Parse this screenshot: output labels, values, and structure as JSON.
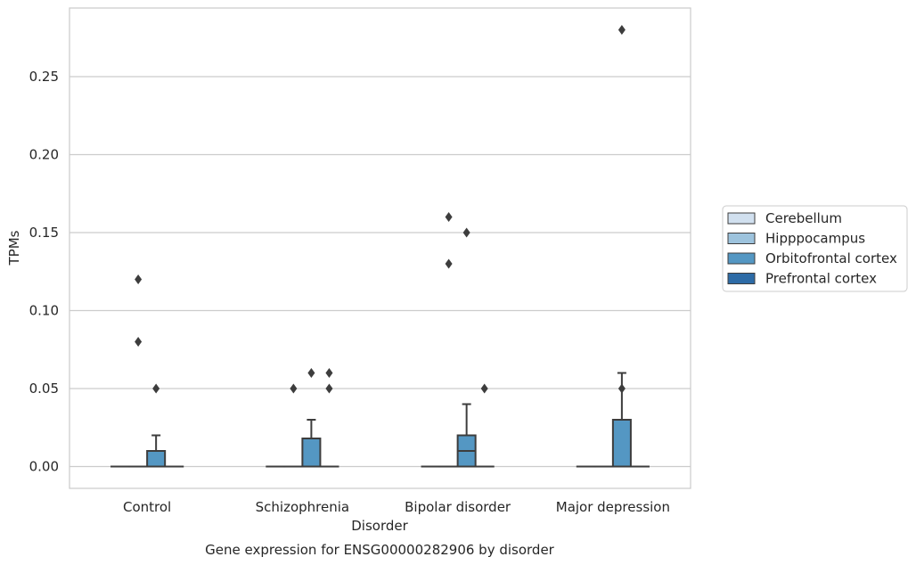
{
  "caption": "Gene expression for ENSG00000282906 by disorder",
  "chart_data": {
    "type": "boxplot",
    "xlabel": "Disorder",
    "ylabel": "TPMs",
    "ylim": [
      -0.014,
      0.294
    ],
    "yticks": [
      0.0,
      0.05,
      0.1,
      0.15,
      0.2,
      0.25
    ],
    "ytick_labels": [
      "0.00",
      "0.05",
      "0.10",
      "0.15",
      "0.20",
      "0.25"
    ],
    "grid": "horizontal",
    "legend_position": "center-right",
    "categories": [
      "Control",
      "Schizophrenia",
      "Bipolar disorder",
      "Major depression"
    ],
    "series": [
      {
        "name": "Cerebellum",
        "color": "#d1e0ef",
        "boxes": [
          {
            "q1": 0,
            "median": 0,
            "q3": 0,
            "whisker_low": 0,
            "whisker_high": 0,
            "outliers": []
          },
          {
            "q1": 0,
            "median": 0,
            "q3": 0,
            "whisker_low": 0,
            "whisker_high": 0,
            "outliers": []
          },
          {
            "q1": 0,
            "median": 0,
            "q3": 0,
            "whisker_low": 0,
            "whisker_high": 0,
            "outliers": []
          },
          {
            "q1": 0,
            "median": 0,
            "q3": 0,
            "whisker_low": 0,
            "whisker_high": 0,
            "outliers": []
          }
        ]
      },
      {
        "name": "Hipppocampus",
        "color": "#9dc3dd",
        "boxes": [
          {
            "q1": 0,
            "median": 0,
            "q3": 0,
            "whisker_low": 0,
            "whisker_high": 0,
            "outliers": [
              0.12,
              0.08
            ]
          },
          {
            "q1": 0,
            "median": 0,
            "q3": 0,
            "whisker_low": 0,
            "whisker_high": 0,
            "outliers": [
              0.05
            ]
          },
          {
            "q1": 0,
            "median": 0,
            "q3": 0,
            "whisker_low": 0,
            "whisker_high": 0,
            "outliers": [
              0.16,
              0.13
            ]
          },
          {
            "q1": 0,
            "median": 0,
            "q3": 0,
            "whisker_low": 0,
            "whisker_high": 0,
            "outliers": []
          }
        ]
      },
      {
        "name": "Orbitofrontal cortex",
        "color": "#5497c3",
        "boxes": [
          {
            "q1": 0,
            "median": 0,
            "q3": 0.01,
            "whisker_low": 0,
            "whisker_high": 0.02,
            "outliers": [
              0.05
            ]
          },
          {
            "q1": 0,
            "median": 0,
            "q3": 0.018,
            "whisker_low": 0,
            "whisker_high": 0.03,
            "outliers": [
              0.06
            ]
          },
          {
            "q1": 0,
            "median": 0.01,
            "q3": 0.02,
            "whisker_low": 0,
            "whisker_high": 0.04,
            "outliers": [
              0.15
            ]
          },
          {
            "q1": 0,
            "median": 0,
            "q3": 0.03,
            "whisker_low": 0,
            "whisker_high": 0.06,
            "outliers": [
              0.28,
              0.05
            ]
          }
        ]
      },
      {
        "name": "Prefrontal cortex",
        "color": "#2d6ba6",
        "boxes": [
          {
            "q1": 0,
            "median": 0,
            "q3": 0,
            "whisker_low": 0,
            "whisker_high": 0,
            "outliers": []
          },
          {
            "q1": 0,
            "median": 0,
            "q3": 0,
            "whisker_low": 0,
            "whisker_high": 0,
            "outliers": [
              0.06,
              0.05
            ]
          },
          {
            "q1": 0,
            "median": 0,
            "q3": 0,
            "whisker_low": 0,
            "whisker_high": 0,
            "outliers": [
              0.05
            ]
          },
          {
            "q1": 0,
            "median": 0,
            "q3": 0,
            "whisker_low": 0,
            "whisker_high": 0,
            "outliers": []
          }
        ]
      }
    ],
    "colors": {
      "grid": "#cccccc",
      "spine": "#cccccc",
      "box_edge": "#3d3d3d",
      "outlier": "#3d3d3d",
      "text": "#262626"
    }
  }
}
